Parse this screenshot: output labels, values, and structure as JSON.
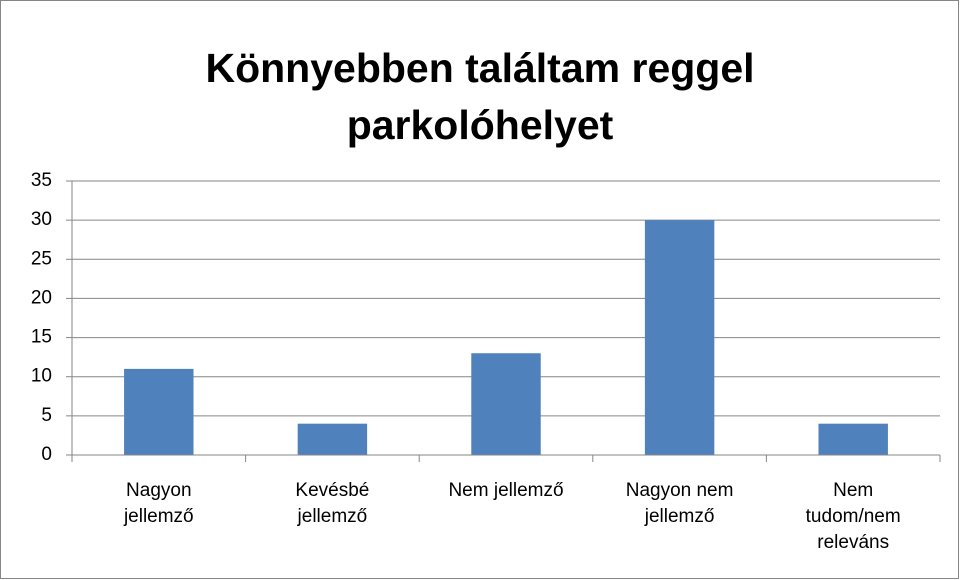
{
  "chart_data": {
    "type": "bar",
    "title": "Könnyebben találtam reggel parkolóhelyet",
    "categories": [
      "Nagyon jellemző",
      "Kevésbé jellemző",
      "Nem jellemző",
      "Nagyon nem jellemző",
      "Nem tudom/nem releváns"
    ],
    "values": [
      11,
      4,
      13,
      30,
      4
    ],
    "color": "#4f81bd",
    "ylim": [
      0,
      35
    ],
    "yticks": [
      0,
      5,
      10,
      15,
      20,
      25,
      30,
      35
    ],
    "grid": true
  }
}
